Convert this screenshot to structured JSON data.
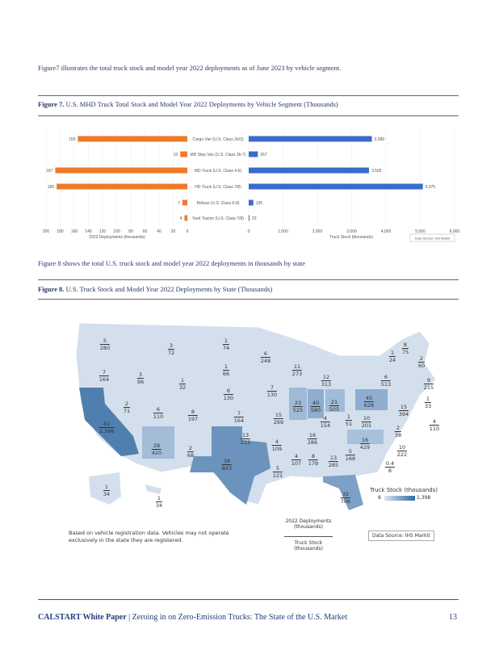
{
  "intro": {
    "text": "Figure7 illustrates the total truck stock and model year 2022 deployments as of June 2023 by vehicle segment."
  },
  "figure7": {
    "caption_label": "Figure 7.",
    "caption": "U.S. MHD Truck Total Stock and Model Year 2022 Deployments by Vehicle Segment (Thousands)"
  },
  "chart_data": {
    "type": "bar",
    "categories": [
      "Cargo Van (U.S. Class 2b/3)",
      "MD Step Van (U.S. Class 2b-7)",
      "MD Truck (U.S. Class 4-6)",
      "HD Truck (U.S. Class 7/8)",
      "Refuse (U.S. Class 6-8)",
      "Yard Tractor (U.S. Class 7/8)"
    ],
    "series": [
      {
        "name": "2022 Deployments (thousands)",
        "color": "#f07a28",
        "values": [
          155,
          10,
          187,
          185,
          7,
          4
        ],
        "labels": [
          "155",
          "10",
          "187",
          "185",
          "7",
          "4"
        ]
      },
      {
        "name": "Truck Stock (thousands)",
        "color": "#3a6bc9",
        "values": [
          3589,
          267,
          3505,
          5075,
          135,
          23
        ],
        "labels": [
          "3,589",
          "267",
          "3,505",
          "5,075",
          "135",
          "23"
        ]
      }
    ],
    "left_axis": {
      "label": "2022 Deployments (thousands)",
      "ticks": [
        200,
        180,
        160,
        140,
        120,
        100,
        80,
        60,
        40,
        20,
        0
      ],
      "range": [
        0,
        200
      ]
    },
    "right_axis": {
      "label": "Truck Stock (thousands)",
      "ticks": [
        "0",
        "1,000",
        "2,000",
        "3,000",
        "4,000",
        "5,000",
        "6,000"
      ],
      "range": [
        0,
        6000
      ]
    },
    "source": "Data Source: IHS Markit"
  },
  "figure8_intro": {
    "text": "Figure 8 shows the total U.S. truck stock and model year 2022 deployments in thousands by state"
  },
  "figure8": {
    "caption_label": "Figure 8.",
    "caption": "U.S. Truck Stock and Model Year 2022 Deployments by State (Thousands)"
  },
  "map": {
    "states": [
      [
        "WA",
        "5",
        "280"
      ],
      [
        "MT",
        "3",
        "72"
      ],
      [
        "ND",
        "1",
        "74"
      ],
      [
        "MN",
        "6",
        "248"
      ],
      [
        "OR",
        "7",
        "164"
      ],
      [
        "ID",
        "3",
        "96"
      ],
      [
        "WY",
        "1",
        "32"
      ],
      [
        "SD",
        "1",
        "66"
      ],
      [
        "NE",
        "6",
        "130"
      ],
      [
        "IA",
        "7",
        "130"
      ],
      [
        "WI",
        "11",
        "273"
      ],
      [
        "MI",
        "12",
        "313"
      ],
      [
        "NV",
        "2",
        "71"
      ],
      [
        "UT",
        "6",
        "110"
      ],
      [
        "CO",
        "8",
        "197"
      ],
      [
        "KS",
        "7",
        "164"
      ],
      [
        "CA",
        "41",
        "1,398"
      ],
      [
        "AZ",
        "28",
        "420"
      ],
      [
        "NM",
        "2",
        "68"
      ],
      [
        "OK",
        "13",
        "213"
      ],
      [
        "TX",
        "38",
        "843"
      ],
      [
        "MO",
        "15",
        "269"
      ],
      [
        "IL",
        "23",
        "525"
      ],
      [
        "IN",
        "40",
        "580"
      ],
      [
        "OH",
        "21",
        "505"
      ],
      [
        "PA",
        "45",
        "628"
      ],
      [
        "NY",
        "6",
        "513"
      ],
      [
        "KY",
        "4",
        "154"
      ],
      [
        "WV",
        "1",
        "51"
      ],
      [
        "VA",
        "10",
        "201"
      ],
      [
        "TN",
        "16",
        "286"
      ],
      [
        "NC",
        "16",
        "429"
      ],
      [
        "AR",
        "4",
        "109"
      ],
      [
        "SC",
        "5",
        "168"
      ],
      [
        "MS",
        "4",
        "107"
      ],
      [
        "AL",
        "8",
        "179"
      ],
      [
        "GA",
        "13",
        "285"
      ],
      [
        "LA",
        "5",
        "121"
      ],
      [
        "FL",
        "32",
        "706"
      ],
      [
        "AK",
        "1",
        "34"
      ],
      [
        "HI",
        "1",
        "34"
      ],
      [
        "VT",
        "1",
        "24"
      ],
      [
        "NH",
        "8",
        "75"
      ],
      [
        "ME",
        "2",
        "60"
      ],
      [
        "MA",
        "9",
        "215"
      ],
      [
        "RI",
        "1",
        "33"
      ],
      [
        "CT",
        "4",
        "110"
      ],
      [
        "NJ",
        "15",
        "394"
      ],
      [
        "DE",
        "2",
        "38"
      ],
      [
        "MD",
        "10",
        "222"
      ],
      [
        "DC",
        "0.4",
        "8"
      ]
    ],
    "legend_title": "Truck Stock (thousands)",
    "legend_min": "8",
    "legend_max": "1,398",
    "key_top": "2022 Deployments (thousands)",
    "key_bottom": "Truck Stock (thousands)",
    "note": "Based on vehicle registration data. Vehicles may not operate exclusively in the state they are registered.",
    "source": "Data Source: IHS Markit",
    "colors": {
      "light": "#dbe5f0",
      "mid": "#a9c0da",
      "dark": "#4f7fae"
    }
  },
  "footer": {
    "brand": "CALSTART White Paper",
    "title": "| Zeroing in on Zero-Emission Trucks: The State of the U.S. Market",
    "page": "13"
  }
}
